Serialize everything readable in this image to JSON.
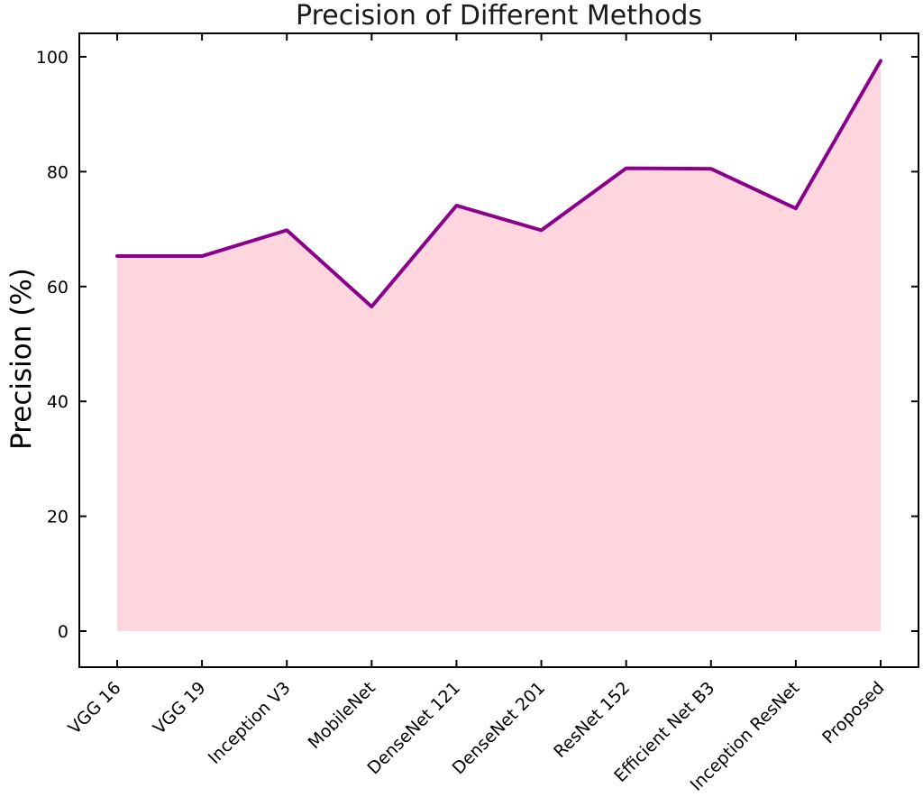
{
  "chart_data": {
    "type": "area",
    "title": "Precision of Different Methods",
    "xlabel": "",
    "ylabel": "Precision (%)",
    "categories": [
      "VGG 16",
      "VGG 19",
      "Inception V3",
      "MobileNet",
      "DenseNet 121",
      "DenseNet 201",
      "ResNet 152",
      "Efficient Net B3",
      "Inception ResNet",
      "Proposed"
    ],
    "series": [
      {
        "name": "Precision",
        "values": [
          65.3,
          65.3,
          69.8,
          56.5,
          74.1,
          69.8,
          80.6,
          80.5,
          73.6,
          99.3
        ]
      }
    ],
    "yticks": [
      0,
      20,
      40,
      60,
      80,
      100
    ],
    "ylim": [
      -6,
      104
    ],
    "xtick_rotation_deg": 45,
    "grid": false,
    "legend": "none",
    "colors": {
      "line": "#8B008B",
      "fill": "#FFD6DE",
      "axis": "#000000",
      "title_text": "#1b1b1b",
      "background": "#ffffff"
    }
  }
}
